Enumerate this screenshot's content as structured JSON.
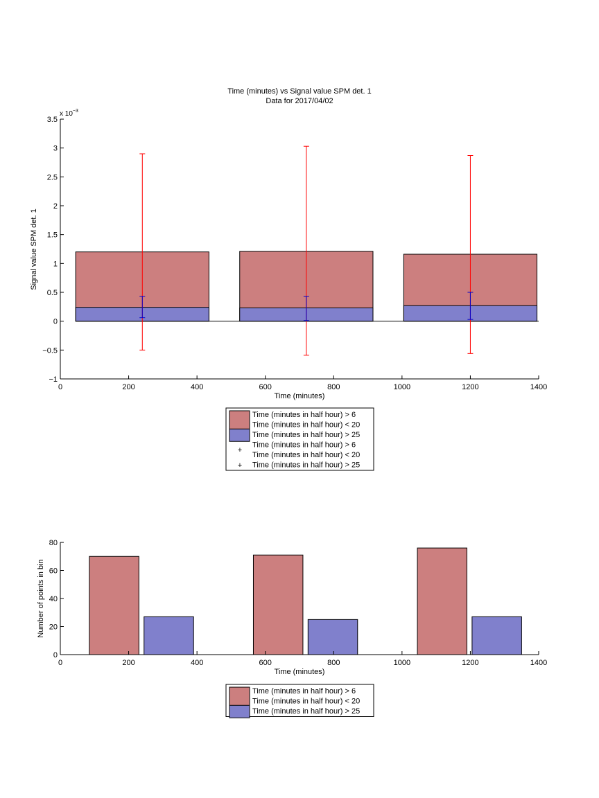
{
  "chart_data": [
    {
      "type": "bar",
      "title": "Time (minutes) vs Signal value SPM det. 1",
      "subtitle": "Data for 2017/04/02",
      "xlabel": "Time (minutes)",
      "ylabel": "Signal value SPM det. 1",
      "exponent_base": "x 10",
      "exponent_power": "−3",
      "xlim": [
        0,
        1400
      ],
      "ylim": [
        -1,
        3.5
      ],
      "xticks": [
        0,
        200,
        400,
        600,
        800,
        1000,
        1200,
        1400
      ],
      "yticks": [
        -1,
        -0.5,
        0,
        0.5,
        1,
        1.5,
        2,
        2.5,
        3,
        3.5
      ],
      "ytick_labels": [
        "−1",
        "−0.5",
        "0",
        "0.5",
        "1",
        "1.5",
        "2",
        "2.5",
        "3",
        "3.5"
      ],
      "bars": [
        {
          "series": 0,
          "x_start": 45,
          "x_end": 435,
          "value": 1.2
        },
        {
          "series": 0,
          "x_start": 525,
          "x_end": 915,
          "value": 1.21
        },
        {
          "series": 0,
          "x_start": 1005,
          "x_end": 1395,
          "value": 1.16
        },
        {
          "series": 1,
          "x_start": 45,
          "x_end": 435,
          "value": 0.24
        },
        {
          "series": 1,
          "x_start": 525,
          "x_end": 915,
          "value": 0.23
        },
        {
          "series": 1,
          "x_start": 1005,
          "x_end": 1395,
          "value": 0.27
        }
      ],
      "errorbars": [
        {
          "series": 0,
          "x": 240,
          "low": -0.5,
          "high": 2.9
        },
        {
          "series": 0,
          "x": 720,
          "low": -0.59,
          "high": 3.03
        },
        {
          "series": 0,
          "x": 1200,
          "low": -0.56,
          "high": 2.87
        },
        {
          "series": 1,
          "x": 240,
          "low": 0.06,
          "high": 0.43
        },
        {
          "series": 1,
          "x": 720,
          "low": 0.01,
          "high": 0.43
        },
        {
          "series": 1,
          "x": 1200,
          "low": 0.03,
          "high": 0.5
        }
      ],
      "series": [
        {
          "name_lines": [
            "Time (minutes in half hour) > 6",
            "Time (minutes in half hour) < 20"
          ],
          "color": "#cc7f7f",
          "err_color": "#ff0000"
        },
        {
          "name_lines": [
            "Time (minutes in half hour) > 25"
          ],
          "color": "#8080cc",
          "err_color": "#0000cc"
        }
      ],
      "legend": {
        "placement": "below",
        "entries": [
          {
            "kind": "patch",
            "series": 0,
            "lines": [
              "Time (minutes in half hour) > 6",
              "Time (minutes in half hour) < 20"
            ]
          },
          {
            "kind": "patch",
            "series": 1,
            "lines": [
              "Time (minutes in half hour) > 25"
            ]
          },
          {
            "kind": "marker",
            "series": 0,
            "lines": [
              "Time (minutes in half hour) > 6",
              "Time (minutes in half hour) < 20"
            ]
          },
          {
            "kind": "marker",
            "series": 1,
            "lines": [
              "Time (minutes in half hour) > 25"
            ]
          }
        ]
      }
    },
    {
      "type": "bar",
      "title": "",
      "xlabel": "Time (minutes)",
      "ylabel": "Number of points in bin",
      "xlim": [
        0,
        1400
      ],
      "ylim": [
        0,
        80
      ],
      "xticks": [
        0,
        200,
        400,
        600,
        800,
        1000,
        1200,
        1400
      ],
      "yticks": [
        0,
        20,
        40,
        60,
        80
      ],
      "ytick_labels": [
        "0",
        "20",
        "40",
        "60",
        "80"
      ],
      "bars": [
        {
          "series": 0,
          "x_start": 85,
          "x_end": 230,
          "value": 70
        },
        {
          "series": 1,
          "x_start": 245,
          "x_end": 390,
          "value": 27
        },
        {
          "series": 0,
          "x_start": 565,
          "x_end": 710,
          "value": 71
        },
        {
          "series": 1,
          "x_start": 725,
          "x_end": 870,
          "value": 25
        },
        {
          "series": 0,
          "x_start": 1045,
          "x_end": 1190,
          "value": 76
        },
        {
          "series": 1,
          "x_start": 1205,
          "x_end": 1350,
          "value": 27
        }
      ],
      "errorbars": [],
      "series": [
        {
          "name_lines": [
            "Time (minutes in half hour) > 6",
            "Time (minutes in half hour) < 20"
          ],
          "color": "#cc7f7f"
        },
        {
          "name_lines": [
            "Time (minutes in half hour) > 25"
          ],
          "color": "#8080cc"
        }
      ],
      "legend": {
        "placement": "below",
        "entries": [
          {
            "kind": "patch",
            "series": 0,
            "lines": [
              "Time (minutes in half hour) > 6",
              "Time (minutes in half hour) < 20"
            ]
          },
          {
            "kind": "patch",
            "series": 1,
            "lines": [
              "Time (minutes in half hour) > 25"
            ]
          }
        ]
      }
    }
  ]
}
